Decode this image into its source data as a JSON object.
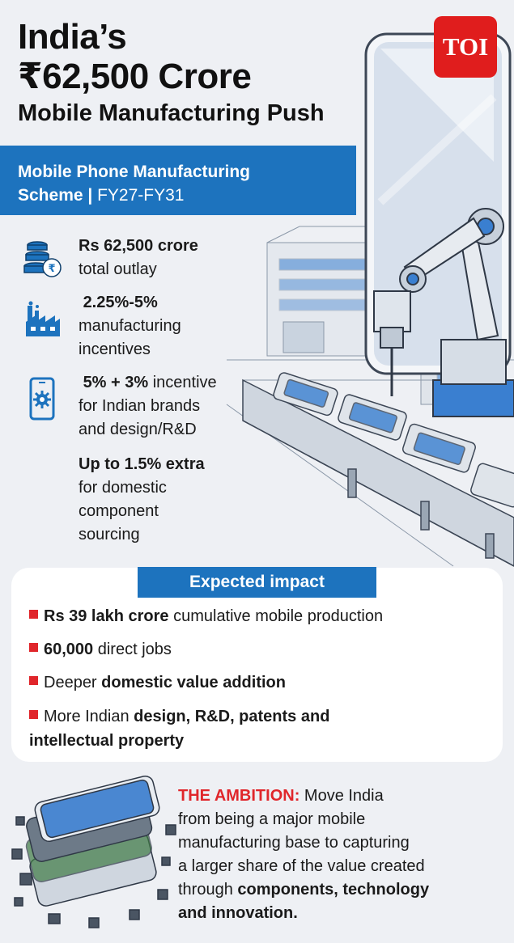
{
  "colors": {
    "accent_blue": "#1d73be",
    "brand_red": "#e01d1d",
    "bullet_red": "#e0262b",
    "background": "#eef0f4"
  },
  "header": {
    "title_line1": "India’s",
    "title_line2": "₹62,500 Crore",
    "title_line3": "Mobile Manufacturing Push",
    "logo": "TOI"
  },
  "scheme": {
    "name_line1": "Mobile Phone Manufacturing",
    "name_line2": "Scheme",
    "separator": " | ",
    "period": "FY27-FY31"
  },
  "features": [
    {
      "icon": "coins-rupee-icon",
      "bold": "Rs 62,500 crore",
      "rest": "total outlay"
    },
    {
      "icon": "factory-icon",
      "bold": "2.25%-5%",
      "rest_line1": "manufacturing",
      "rest_line2": "incentives"
    },
    {
      "icon": "phone-gear-icon",
      "bold": "5% + 3%",
      "rest_line1": " incentive",
      "rest_line2": "for Indian brands",
      "rest_line3": "and design/R&D"
    },
    {
      "bold": "Up to 1.5% extra",
      "rest_line1": "for domestic",
      "rest_line2": "component",
      "rest_line3": "sourcing"
    }
  ],
  "impact": {
    "heading": "Expected impact",
    "items": [
      {
        "bold": "Rs 39 lakh crore",
        "rest": " cumulative mobile production"
      },
      {
        "bold": "60,000",
        "rest": " direct jobs"
      },
      {
        "pre": "Deeper ",
        "bold": "domestic value addition"
      },
      {
        "pre": "More Indian ",
        "bold_line1": "design, R&D, patents and",
        "bold_line2": "intellectual property"
      }
    ]
  },
  "ambition": {
    "label": "THE AMBITION:",
    "line1": " Move India",
    "line2": "from being a major mobile",
    "line3": "manufacturing base to capturing",
    "line4": "a larger share of the value created",
    "line5_pre": "through ",
    "line5_bold": "components, technology",
    "line6_bold": "and innovation."
  }
}
